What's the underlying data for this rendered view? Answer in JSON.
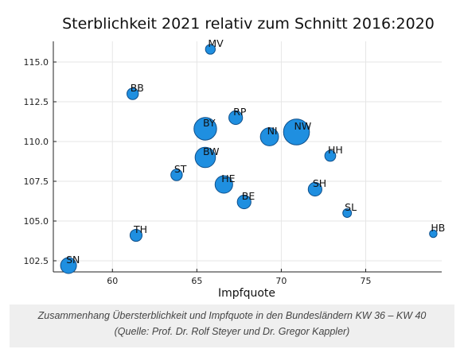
{
  "chart_data": {
    "type": "scatter",
    "title": "Sterblichkeit 2021 relativ zum Schnitt 2016:2020",
    "xlabel": "Impfquote",
    "ylabel": "",
    "xlim": [
      56.5,
      79.5
    ],
    "ylim": [
      101.8,
      116.3
    ],
    "x_ticks": [
      60,
      65,
      70,
      75
    ],
    "y_ticks": [
      102.5,
      105.0,
      107.5,
      110.0,
      112.5,
      115.0
    ],
    "x_tick_labels": [
      "60",
      "65",
      "70",
      "75"
    ],
    "y_tick_labels": [
      "102.5",
      "105.0",
      "107.5",
      "110.0",
      "112.5",
      "115.0"
    ],
    "grid": true,
    "legend": "none",
    "marker_color": "#1f8fe0",
    "points": [
      {
        "label": "MV",
        "x": 65.8,
        "y": 115.8,
        "size": 0.9
      },
      {
        "label": "BB",
        "x": 61.2,
        "y": 113.0,
        "size": 1.2
      },
      {
        "label": "RP",
        "x": 67.3,
        "y": 111.5,
        "size": 1.6
      },
      {
        "label": "BY",
        "x": 65.5,
        "y": 110.8,
        "size": 3.2
      },
      {
        "label": "NI",
        "x": 69.3,
        "y": 110.3,
        "size": 2.4
      },
      {
        "label": "NW",
        "x": 70.9,
        "y": 110.6,
        "size": 3.8
      },
      {
        "label": "HH",
        "x": 72.9,
        "y": 109.1,
        "size": 1.1
      },
      {
        "label": "BW",
        "x": 65.5,
        "y": 109.0,
        "size": 2.8
      },
      {
        "label": "ST",
        "x": 63.8,
        "y": 107.9,
        "size": 1.2
      },
      {
        "label": "HE",
        "x": 66.6,
        "y": 107.3,
        "size": 2.3
      },
      {
        "label": "SH",
        "x": 72.0,
        "y": 107.0,
        "size": 1.6
      },
      {
        "label": "BE",
        "x": 67.8,
        "y": 106.2,
        "size": 1.6
      },
      {
        "label": "SL",
        "x": 73.9,
        "y": 105.5,
        "size": 0.7
      },
      {
        "label": "HB",
        "x": 79.0,
        "y": 104.2,
        "size": 0.5
      },
      {
        "label": "TH",
        "x": 61.4,
        "y": 104.1,
        "size": 1.3
      },
      {
        "label": "SN",
        "x": 57.4,
        "y": 102.2,
        "size": 2.0
      }
    ]
  },
  "caption": {
    "text": "Zusammenhang Übersterblichkeit und Impfquote in den Bundesländern KW 36 – KW 40 (Quelle: Prof. Dr. Rolf Steyer und Dr. Gregor Kappler)"
  }
}
